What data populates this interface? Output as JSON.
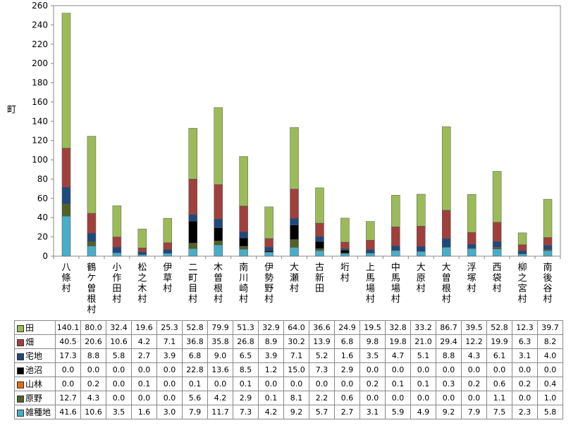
{
  "chart_data": {
    "type": "bar",
    "stacked": true,
    "title": "",
    "xlabel": "",
    "ylabel": "町",
    "ylim": [
      0,
      260
    ],
    "yticks": [
      0,
      20,
      40,
      60,
      80,
      100,
      120,
      140,
      160,
      180,
      200,
      220,
      240,
      260
    ],
    "grid": false,
    "legend": "data-table-below",
    "categories": [
      "八條村",
      "鶴ケ曽根村",
      "小作田村",
      "松之木村",
      "伊草村",
      "二町目村",
      "木曽根村",
      "南川崎村",
      "伊勢野村",
      "大瀬村",
      "古新田",
      "垳村",
      "上馬場村",
      "中馬場村",
      "大原村",
      "大曽根村",
      "浮塚村",
      "西袋村",
      "柳之宮村",
      "南後谷村"
    ],
    "series": [
      {
        "name": "田",
        "color": "#9BBB59",
        "values": [
          140.1,
          80.0,
          32.4,
          19.6,
          25.3,
          52.8,
          79.9,
          51.3,
          32.9,
          64.0,
          36.6,
          24.9,
          19.5,
          32.8,
          33.2,
          86.7,
          39.5,
          52.8,
          12.3,
          39.7
        ]
      },
      {
        "name": "畑",
        "color": "#A0403C",
        "values": [
          40.5,
          20.6,
          10.6,
          4.2,
          7.1,
          36.8,
          35.8,
          26.8,
          8.9,
          30.2,
          13.9,
          6.8,
          9.8,
          19.8,
          21.0,
          29.4,
          12.2,
          19.9,
          6.3,
          8.2
        ]
      },
      {
        "name": "宅地",
        "color": "#1F497D",
        "values": [
          17.3,
          8.8,
          5.8,
          2.7,
          3.9,
          6.8,
          9.0,
          6.5,
          3.9,
          7.1,
          5.2,
          1.6,
          3.5,
          4.7,
          5.1,
          8.8,
          4.3,
          6.1,
          3.1,
          4.0
        ]
      },
      {
        "name": "池沼",
        "color": "#000000",
        "values": [
          0.0,
          0.0,
          0.0,
          0.0,
          0.0,
          22.8,
          13.6,
          8.5,
          1.2,
          15.0,
          7.3,
          2.9,
          0.0,
          0.0,
          0.0,
          0.0,
          0.0,
          0.0,
          0.0,
          0.0
        ]
      },
      {
        "name": "山林",
        "color": "#E46C0A",
        "values": [
          0.0,
          0.2,
          0.0,
          0.1,
          0.0,
          0.1,
          0.0,
          0.1,
          0.0,
          0.0,
          0.0,
          0.0,
          0.2,
          0.1,
          0.1,
          0.3,
          0.2,
          0.6,
          0.2,
          0.4
        ]
      },
      {
        "name": "原野",
        "color": "#4F6228",
        "values": [
          12.7,
          4.3,
          0.0,
          0.0,
          0.0,
          5.6,
          4.2,
          2.9,
          0.1,
          8.1,
          2.2,
          0.6,
          0.0,
          0.0,
          0.0,
          0.0,
          0.0,
          1.1,
          0.0,
          1.0
        ]
      },
      {
        "name": "雑種地",
        "color": "#4BACC6",
        "values": [
          41.6,
          10.6,
          3.5,
          1.6,
          3.0,
          7.9,
          11.7,
          7.3,
          4.2,
          9.2,
          5.7,
          2.7,
          3.1,
          5.9,
          4.9,
          9.2,
          7.9,
          7.5,
          2.3,
          5.8
        ]
      }
    ]
  }
}
